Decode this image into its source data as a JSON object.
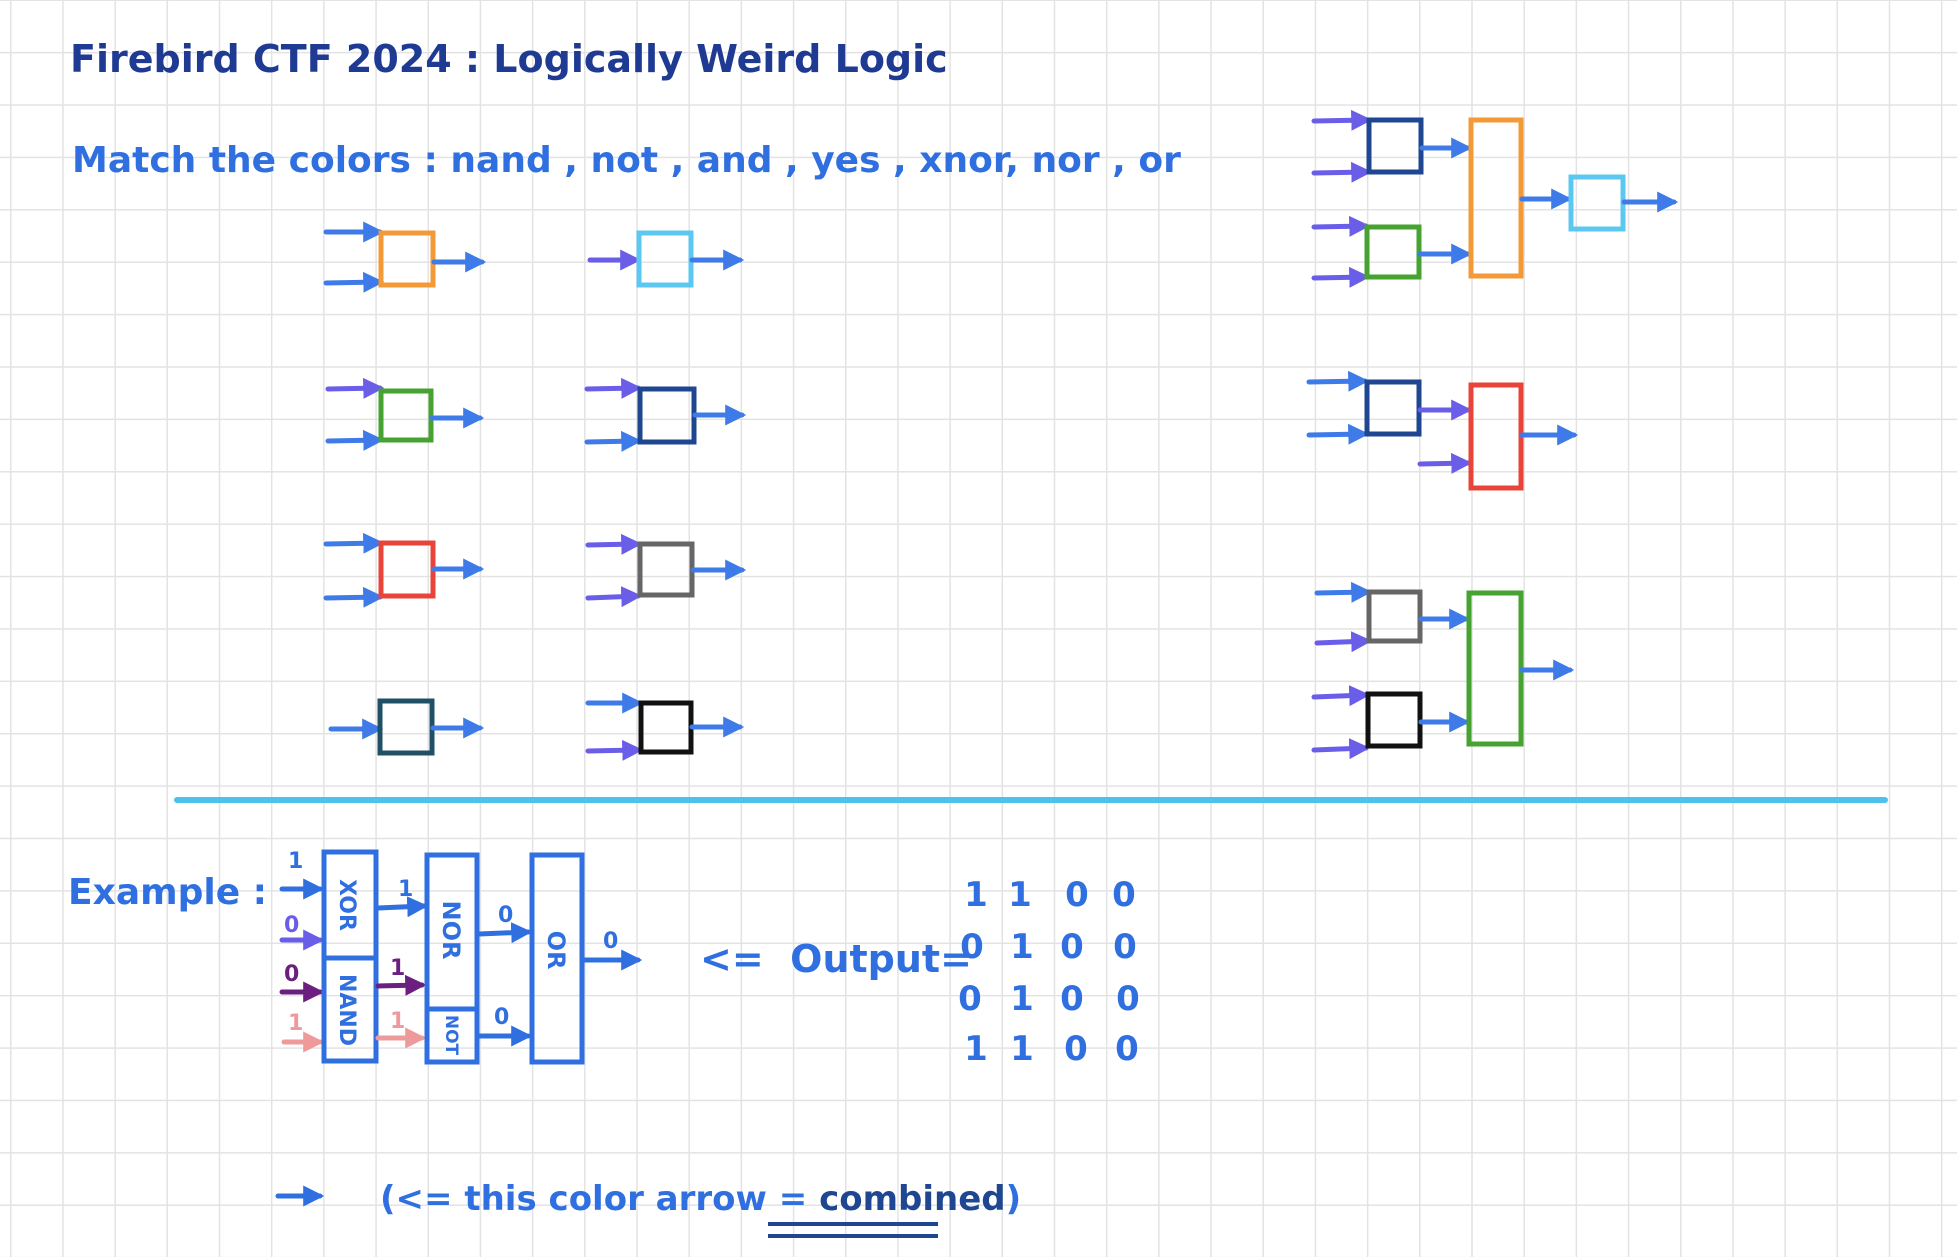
{
  "title": "Firebird CTF 2024 : Logically Weird Logic",
  "instruction": "Match the colors : nand , not , and , yes , xnor, nor , or",
  "colors": {
    "ink_dark": "#1f3a93",
    "ink_blue": "#2f6fe0",
    "arrow_blue": "#3f7be8",
    "arrow_violet": "#6a5ee8",
    "arrow_purple": "#6b1f7e",
    "arrow_pink": "#ef9a9a",
    "divider": "#4dc3ec",
    "gate_orange": "#f29a38",
    "gate_cyan": "#5cc8f2",
    "gate_green": "#46a332",
    "gate_navy": "#1f4691",
    "gate_red": "#e8443a",
    "gate_gray": "#666666",
    "gate_teal": "#1f5065",
    "gate_black": "#111111"
  },
  "example": {
    "label": "Example :",
    "gates": [
      "XOR",
      "NAND",
      "NOR",
      "NOT",
      "OR"
    ],
    "inputs": [
      "1",
      "0",
      "0",
      "1"
    ],
    "mid_values": [
      "1",
      "1",
      "1"
    ],
    "nor_out": "0",
    "not_out": "0",
    "or_out": "0",
    "output_label": "<=  Output=",
    "output_rows": [
      [
        "1",
        "1",
        "0",
        "0"
      ],
      [
        "0",
        "1",
        "0",
        "0"
      ],
      [
        "0",
        "1",
        "0",
        "0"
      ],
      [
        "1",
        "1",
        "0",
        "0"
      ]
    ]
  },
  "legend": {
    "prefix": "(<= this color arrow = ",
    "emphasis": "combined",
    "suffix": ")"
  }
}
